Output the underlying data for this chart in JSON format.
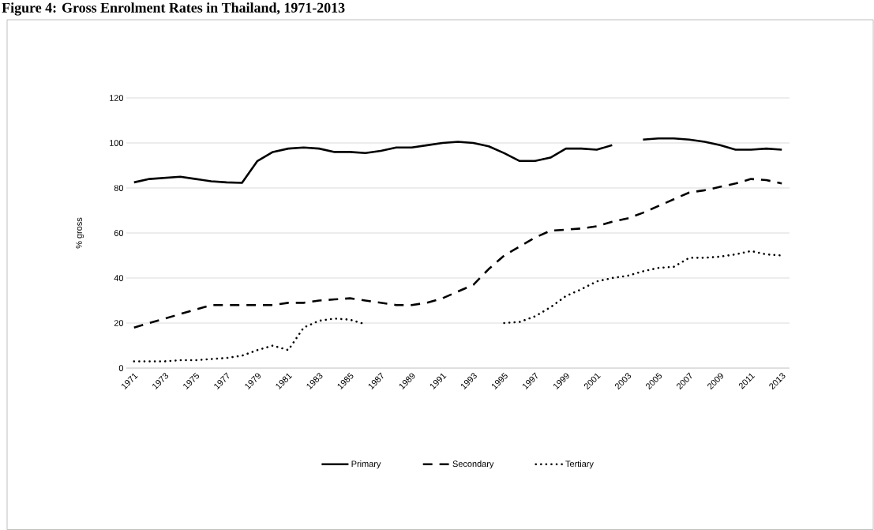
{
  "chart_data": {
    "type": "line",
    "title": "Figure 4: Gross Enrolment Rates in Thailand, 1971-2013",
    "ylabel": "% gross",
    "categories": [
      "1971",
      null,
      "1973",
      null,
      "1975",
      null,
      "1977",
      null,
      "1979",
      null,
      "1981",
      null,
      "1983",
      null,
      "1985",
      null,
      "1987",
      null,
      "1989",
      null,
      "1991",
      null,
      "1993",
      null,
      "1995",
      null,
      "1997",
      null,
      "1999",
      null,
      "2001",
      null,
      "2003",
      null,
      "2005",
      null,
      "2007",
      null,
      "2009",
      null,
      "2011",
      null,
      "2013"
    ],
    "series": [
      {
        "name": "Primary",
        "color": "#000000",
        "line_style": "solid",
        "values": [
          82.5,
          84,
          84.5,
          85,
          84,
          83,
          82.5,
          82.3,
          92,
          96,
          97.5,
          98,
          97.5,
          96,
          96,
          95.5,
          96.5,
          98,
          98,
          99,
          100,
          100.5,
          100,
          98.5,
          95.5,
          92,
          92,
          93.5,
          97.5,
          97.5,
          97,
          99,
          null,
          101.5,
          102,
          102,
          101.5,
          100.5,
          99,
          97,
          97,
          97.5,
          97
        ]
      },
      {
        "name": "Secondary",
        "color": "#000000",
        "line_style": "dashed",
        "values": [
          18,
          20,
          22,
          24,
          26,
          28,
          28,
          28,
          28,
          28,
          29,
          29,
          30,
          30.5,
          31,
          30,
          29,
          28,
          28,
          29,
          31,
          34,
          37,
          44,
          50,
          54,
          58,
          61,
          61.5,
          62,
          63,
          65,
          66.5,
          69,
          72,
          75,
          78,
          79,
          80.5,
          82,
          84,
          83.5,
          82
        ]
      },
      {
        "name": "Tertiary",
        "color": "#000000",
        "line_style": "dotted",
        "values": [
          3,
          3,
          3,
          3.5,
          3.5,
          4,
          4.5,
          5.5,
          8,
          10,
          8,
          18,
          21,
          22,
          21.5,
          19.5,
          null,
          null,
          null,
          null,
          null,
          null,
          null,
          null,
          20,
          20.5,
          23,
          27,
          32,
          35,
          38.5,
          40,
          41,
          43,
          44.5,
          45,
          49,
          49,
          49.5,
          50.5,
          52,
          50.5,
          50
        ]
      }
    ],
    "ylim": [
      0,
      120
    ],
    "yticks": [
      0,
      20,
      40,
      60,
      80,
      100,
      120
    ],
    "grid": "y",
    "legend": "bottom"
  }
}
